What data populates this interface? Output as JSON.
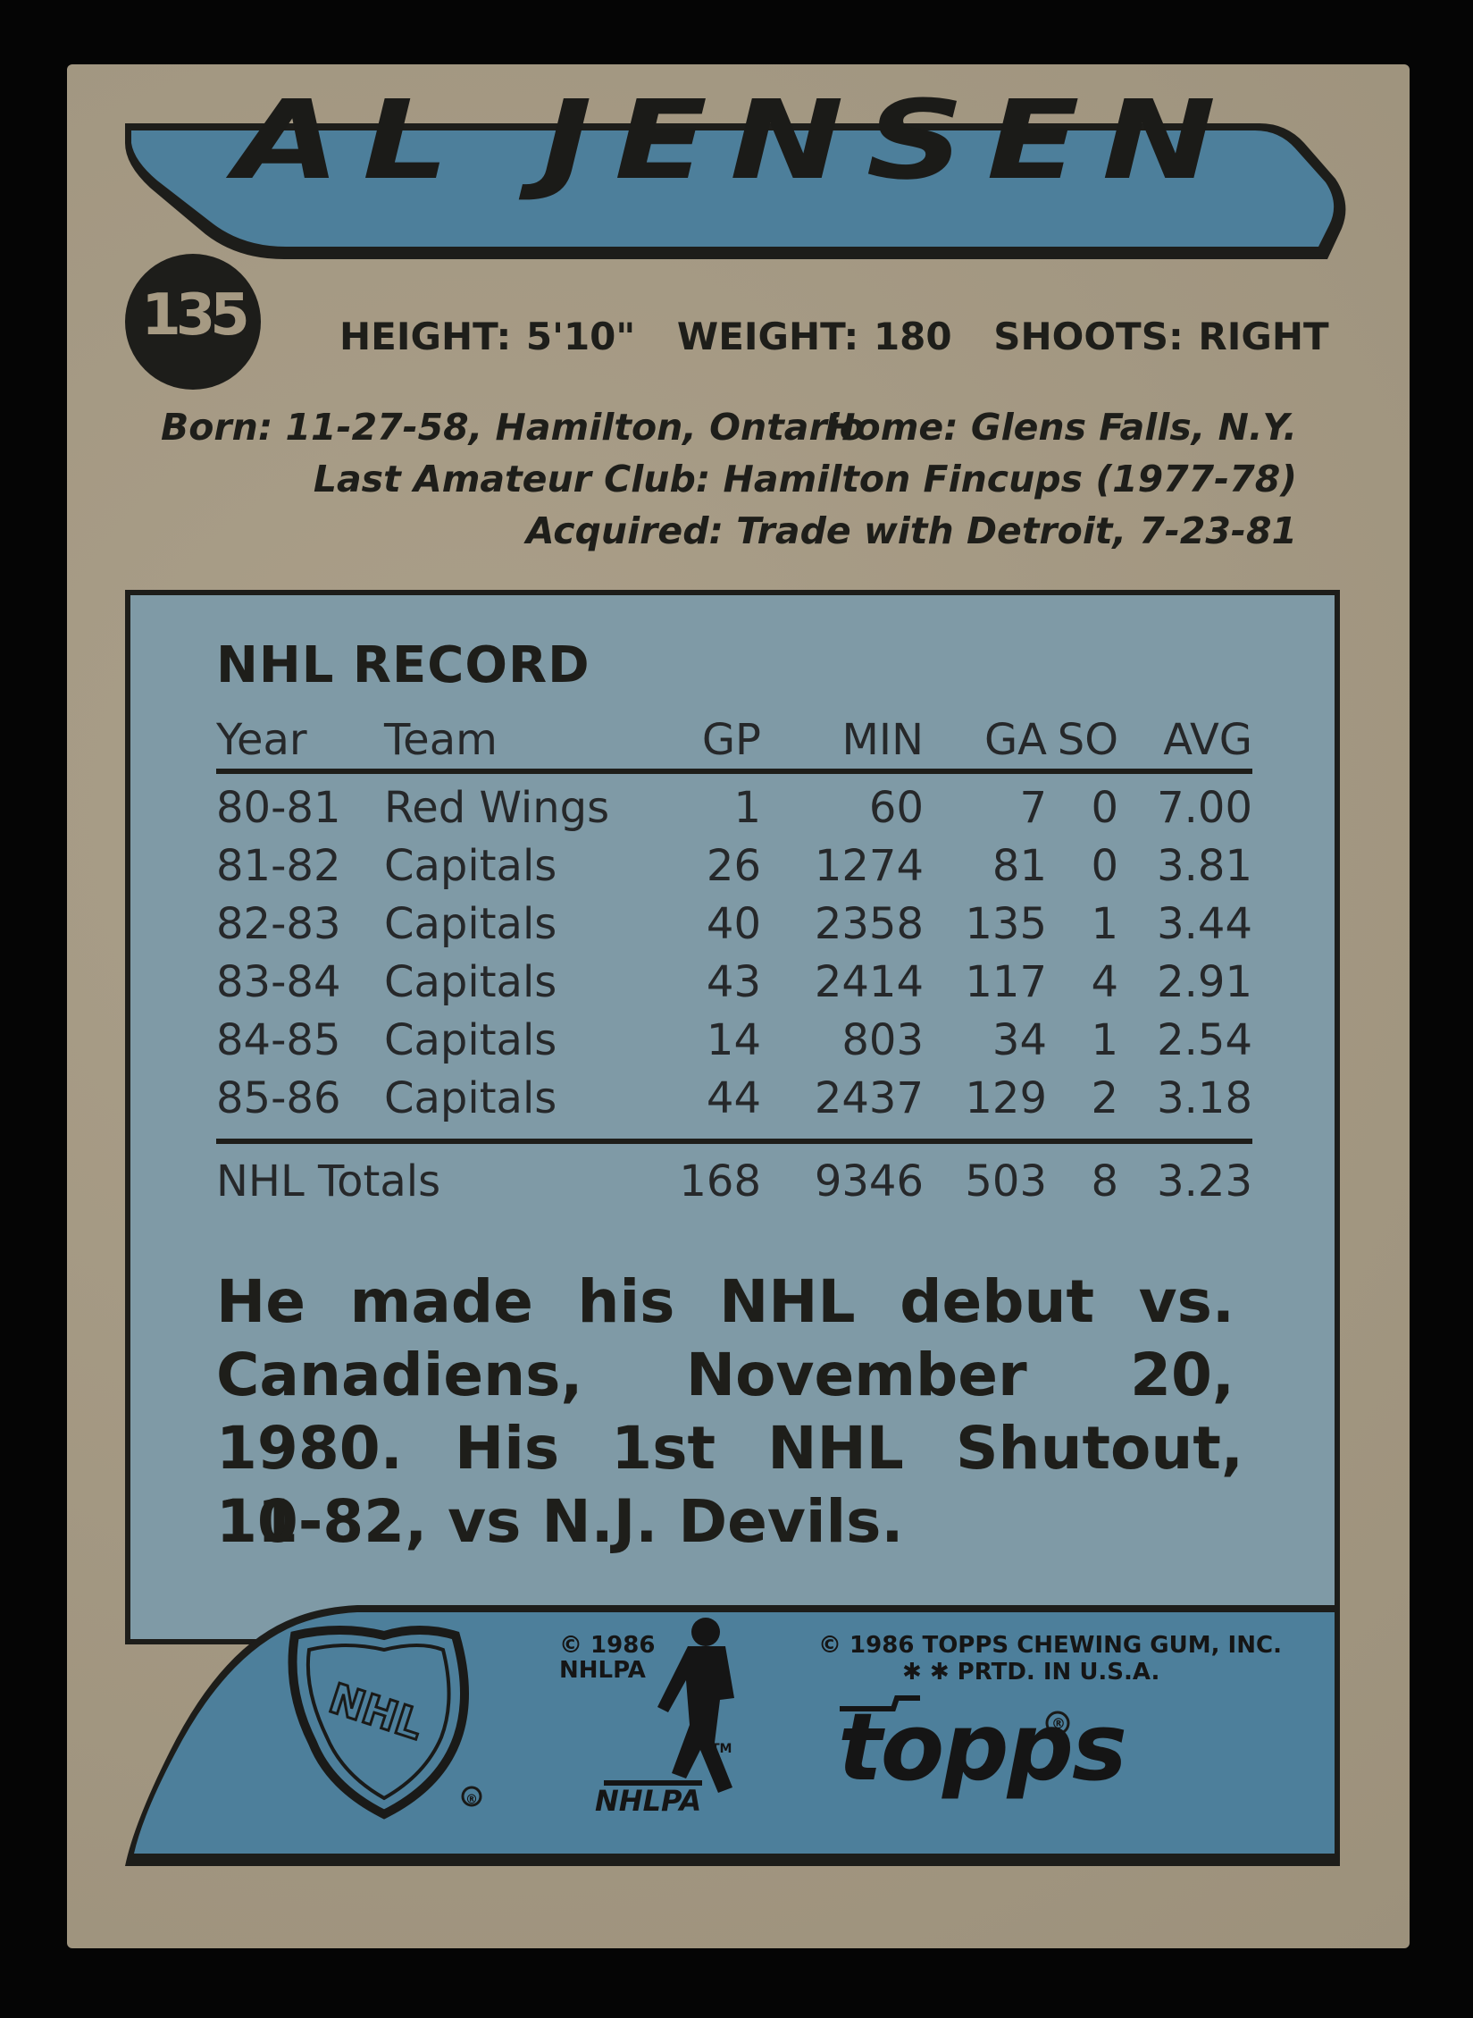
{
  "card": {
    "player_name": "AL JENSEN",
    "card_number": "135",
    "vitals": {
      "height": "HEIGHT: 5'10\"",
      "weight": "WEIGHT: 180",
      "shoots": "SHOOTS: RIGHT"
    },
    "bio": {
      "born": "Born: 11-27-58, Hamilton, Ontario",
      "home": "Home: Glens Falls, N.Y.",
      "last_amateur_club": "Last Amateur Club: Hamilton Fincups (1977-78)",
      "acquired": "Acquired: Trade with Detroit, 7-23-81"
    },
    "record": {
      "title": "NHL RECORD",
      "headers": [
        "Year",
        "Team",
        "GP",
        "MIN",
        "GA",
        "SO",
        "AVG"
      ],
      "rows": [
        [
          "80-81",
          "Red Wings",
          "1",
          "60",
          "7",
          "0",
          "7.00"
        ],
        [
          "81-82",
          "Capitals",
          "26",
          "1274",
          "81",
          "0",
          "3.81"
        ],
        [
          "82-83",
          "Capitals",
          "40",
          "2358",
          "135",
          "1",
          "3.44"
        ],
        [
          "83-84",
          "Capitals",
          "43",
          "2414",
          "117",
          "4",
          "2.91"
        ],
        [
          "84-85",
          "Capitals",
          "14",
          "803",
          "34",
          "1",
          "2.54"
        ],
        [
          "85-86",
          "Capitals",
          "44",
          "2437",
          "129",
          "2",
          "3.18"
        ]
      ],
      "totals": [
        "NHL Totals",
        "168",
        "9346",
        "503",
        "8",
        "3.23"
      ]
    },
    "blurb": [
      "He made his NHL debut vs.",
      "Canadiens, November 20,",
      "1980. His 1st NHL Shutout, 11-",
      "10-82, vs N.J. Devils."
    ],
    "footer": {
      "nhlpa_copyright_1": "© 1986",
      "nhlpa_copyright_2": "NHLPA",
      "nhlpa_tm": "TM",
      "nhlpa_wordmark": "NHLPA",
      "topps_copyright": "© 1986 TOPPS CHEWING GUM, INC.",
      "printed": "✱ ✱ PRTD. IN U.S.A.",
      "topps_logo": "topps",
      "registered": "®",
      "nhl_logo": "NHL"
    },
    "colors": {
      "card_stock": "#a69a83",
      "banner_blue": "#4d7f9b",
      "panel_blue": "#7f9aa6",
      "ink": "#1e1e1a"
    }
  }
}
